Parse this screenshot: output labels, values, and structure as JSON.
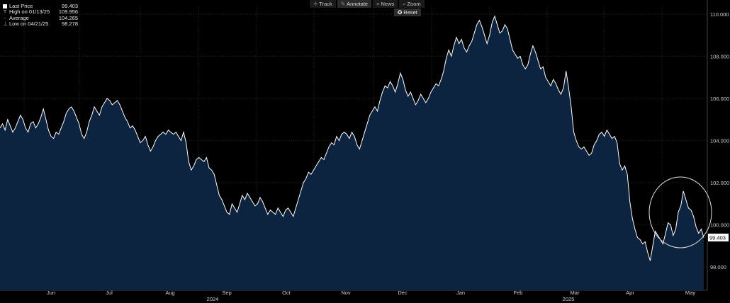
{
  "legend": {
    "last_label": "Last Price",
    "last_value": "99.403",
    "high_label": "High on 01/13/25",
    "high_value": "109.956",
    "avg_label": "Average",
    "avg_value": "104.265",
    "low_label": "Low on 04/21/25",
    "low_value": "98.278"
  },
  "toolbar": {
    "track": "Track",
    "annotate": "Annotate",
    "news": "News",
    "zoom": "Zoom",
    "reset": "Reset"
  },
  "colors": {
    "fill": "#0d2440",
    "line": "#ffffff",
    "grid": "#3a3a3a",
    "background": "#000000"
  },
  "chart_data": {
    "type": "area",
    "yticks": [
      "98.000",
      "100.000",
      "102.000",
      "104.000",
      "106.000",
      "108.000",
      "110.000"
    ],
    "ylim": [
      96.9,
      110.4
    ],
    "months": [
      "Jun",
      "Jul",
      "Aug",
      "Sep",
      "Oct",
      "Nov",
      "Dec",
      "Jan",
      "Feb",
      "Mar",
      "Apr",
      "May"
    ],
    "years": [
      "2024",
      "2025"
    ],
    "last_price_label": "99.403",
    "y": [
      104.6,
      104.8,
      104.5,
      105.0,
      104.7,
      104.4,
      104.6,
      104.9,
      105.2,
      105.0,
      104.6,
      104.4,
      104.8,
      104.9,
      104.6,
      104.8,
      105.1,
      105.5,
      105.0,
      104.5,
      104.2,
      104.1,
      104.4,
      104.3,
      104.6,
      104.9,
      105.3,
      105.5,
      105.6,
      105.4,
      105.1,
      104.8,
      104.3,
      104.1,
      104.4,
      104.9,
      105.2,
      105.6,
      105.4,
      105.2,
      105.6,
      105.8,
      106.0,
      105.9,
      105.7,
      105.8,
      105.9,
      105.7,
      105.4,
      105.1,
      104.9,
      104.6,
      104.7,
      104.5,
      104.2,
      103.9,
      104.0,
      104.2,
      103.8,
      103.5,
      103.7,
      104.0,
      104.2,
      104.3,
      104.4,
      104.3,
      104.5,
      104.4,
      104.3,
      104.4,
      104.2,
      104.0,
      104.4,
      103.9,
      103.0,
      102.6,
      102.8,
      103.1,
      103.2,
      103.1,
      103.0,
      103.2,
      102.7,
      102.6,
      102.4,
      101.9,
      101.4,
      101.2,
      100.9,
      100.6,
      100.5,
      101.0,
      100.8,
      100.6,
      101.0,
      101.4,
      101.2,
      101.5,
      101.3,
      101.1,
      100.9,
      101.0,
      101.3,
      101.1,
      100.8,
      100.5,
      100.7,
      100.6,
      100.5,
      100.8,
      100.6,
      100.4,
      100.7,
      100.8,
      100.6,
      100.4,
      100.8,
      101.2,
      101.6,
      102.0,
      102.2,
      102.5,
      102.4,
      102.6,
      102.8,
      103.0,
      103.2,
      103.1,
      103.4,
      103.7,
      103.9,
      103.8,
      104.2,
      104.0,
      104.3,
      104.4,
      104.3,
      104.1,
      104.4,
      104.2,
      103.8,
      103.6,
      104.0,
      104.4,
      104.8,
      105.2,
      105.4,
      105.6,
      105.4,
      105.9,
      106.3,
      106.6,
      106.5,
      106.8,
      106.6,
      106.3,
      106.7,
      107.2,
      106.9,
      106.4,
      106.1,
      106.3,
      106.0,
      105.7,
      105.9,
      106.2,
      106.0,
      105.8,
      106.0,
      106.3,
      106.5,
      106.7,
      106.6,
      106.9,
      107.3,
      107.9,
      108.3,
      108.0,
      108.5,
      108.9,
      108.6,
      108.8,
      108.4,
      108.2,
      108.5,
      108.7,
      109.1,
      109.5,
      109.7,
      109.4,
      109.0,
      108.6,
      109.0,
      109.6,
      109.9,
      109.5,
      109.1,
      109.2,
      109.5,
      109.3,
      108.8,
      108.3,
      108.1,
      107.9,
      108.0,
      107.6,
      107.4,
      107.6,
      108.1,
      108.5,
      108.2,
      107.8,
      107.4,
      107.5,
      107.0,
      106.8,
      106.6,
      106.9,
      106.7,
      106.4,
      106.2,
      106.5,
      107.3,
      106.5,
      105.6,
      104.4,
      104.0,
      103.7,
      103.6,
      103.7,
      103.5,
      103.3,
      103.4,
      103.8,
      104.0,
      104.3,
      104.4,
      104.2,
      104.5,
      104.3,
      104.1,
      104.2,
      103.9,
      102.9,
      102.6,
      102.8,
      102.4,
      101.1,
      100.3,
      99.8,
      99.4,
      99.3,
      99.1,
      99.2,
      98.7,
      98.3,
      99.0,
      99.7,
      99.5,
      99.3,
      99.1,
      99.6,
      100.1,
      100.0,
      99.5,
      99.8,
      100.6,
      100.9,
      101.6,
      101.2,
      100.8,
      100.7,
      100.4,
      99.9,
      99.6,
      99.8,
      99.4
    ],
    "circle_annotation": true
  }
}
